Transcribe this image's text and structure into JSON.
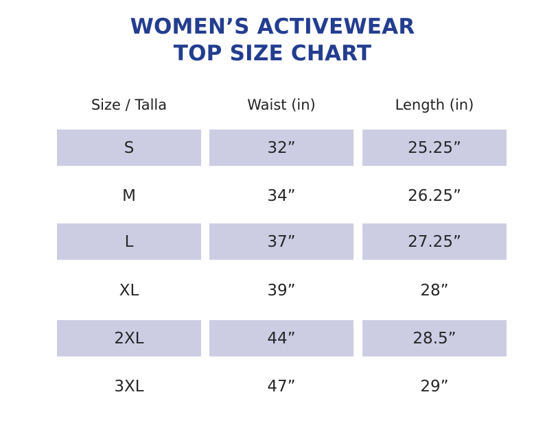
{
  "title": {
    "line1": "WOMEN’S ACTIVEWEAR",
    "line2": "TOP SIZE CHART"
  },
  "table": {
    "headers": [
      "Size / Talla",
      "Waist (in)",
      "Length (in)"
    ],
    "rows": [
      {
        "size": "S",
        "waist": "32”",
        "length": "25.25”"
      },
      {
        "size": "M",
        "waist": "34”",
        "length": "26.25”"
      },
      {
        "size": "L",
        "waist": "37”",
        "length": "27.25”"
      },
      {
        "size": "XL",
        "waist": "39”",
        "length": "28”"
      },
      {
        "size": "2XL",
        "waist": "44”",
        "length": "28.5”"
      },
      {
        "size": "3XL",
        "waist": "47”",
        "length": "29”"
      }
    ]
  },
  "colors": {
    "title": "#233d8f",
    "shaded_row": "#cccde3"
  }
}
